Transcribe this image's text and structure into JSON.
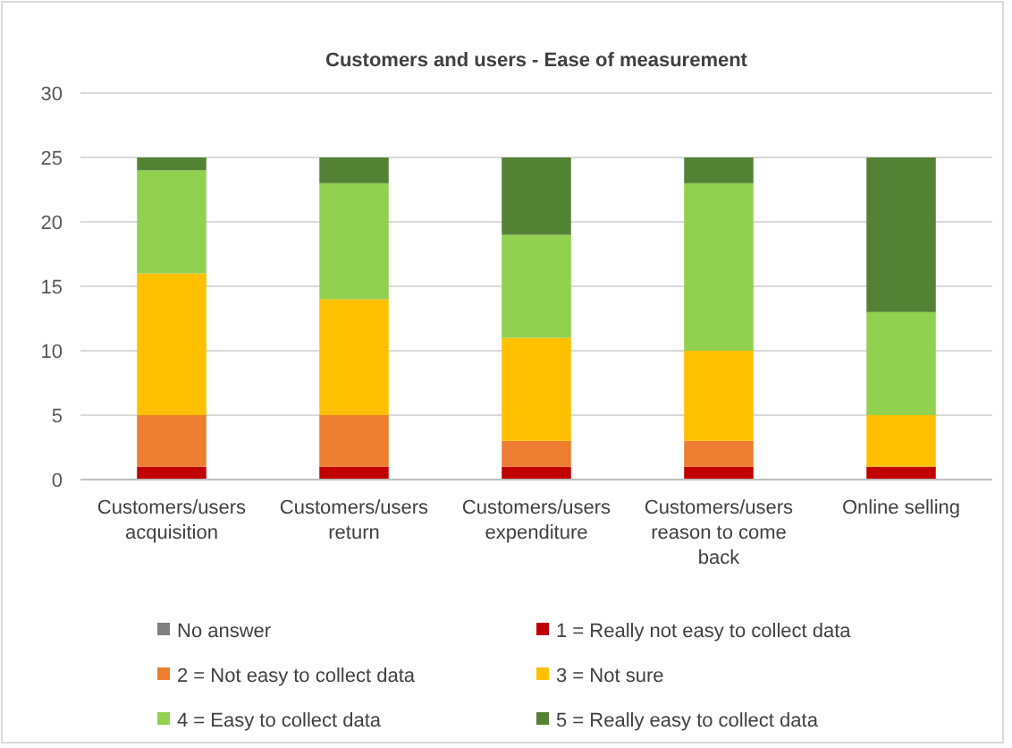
{
  "chart_data": {
    "type": "bar",
    "title": "Customers and users - Ease of measurement",
    "stacked": true,
    "categories": [
      "Customers/users acquisition",
      "Customers/users return",
      "Customers/users expenditure",
      "Customers/users reason to come back",
      "Online selling"
    ],
    "series": [
      {
        "name": "No answer",
        "color": "#808080",
        "values": [
          0,
          0,
          0,
          0,
          0
        ]
      },
      {
        "name": "1 = Really not easy to collect data",
        "color": "#c00000",
        "values": [
          1,
          1,
          1,
          1,
          1
        ]
      },
      {
        "name": "2 = Not easy to collect data",
        "color": "#ed7d31",
        "values": [
          4,
          4,
          2,
          2,
          0
        ]
      },
      {
        "name": "3 = Not sure",
        "color": "#ffc000",
        "values": [
          11,
          9,
          8,
          7,
          4
        ]
      },
      {
        "name": "4 = Easy to collect data",
        "color": "#92d050",
        "values": [
          8,
          9,
          8,
          13,
          8
        ]
      },
      {
        "name": "5 = Really easy to collect data",
        "color": "#548235",
        "values": [
          1,
          2,
          6,
          2,
          12
        ]
      }
    ],
    "ylim": [
      0,
      30
    ],
    "yticks": [
      0,
      5,
      10,
      15,
      20,
      25,
      30
    ],
    "grid": "y",
    "legend": "bottom"
  }
}
